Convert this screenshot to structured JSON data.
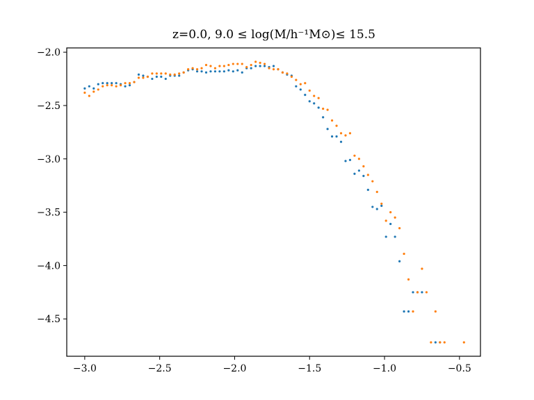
{
  "chart_data": {
    "type": "scatter",
    "title": "z=0.0, 9.0 ≤ log(M/h⁻¹M⊙)≤ 15.5",
    "xlabel": "",
    "ylabel": "",
    "xlim": [
      -3.12,
      -0.36
    ],
    "ylim": [
      -4.85,
      -1.96
    ],
    "xticks": [
      -3.0,
      -2.5,
      -2.0,
      -1.5,
      -1.0,
      -0.5
    ],
    "xtick_labels": [
      "−3.0",
      "−2.5",
      "−2.0",
      "−1.5",
      "−1.0",
      "−0.5"
    ],
    "yticks": [
      -2.0,
      -2.5,
      -3.0,
      -3.5,
      -4.0,
      -4.5
    ],
    "ytick_labels": [
      "−2.0",
      "−2.5",
      "−3.0",
      "−3.5",
      "−4.0",
      "−4.5"
    ],
    "grid": false,
    "series": [
      {
        "color": "#1f77b4",
        "points": [
          [
            -3.0,
            -2.34
          ],
          [
            -2.97,
            -2.32
          ],
          [
            -2.94,
            -2.34
          ],
          [
            -2.91,
            -2.3
          ],
          [
            -2.88,
            -2.29
          ],
          [
            -2.85,
            -2.29
          ],
          [
            -2.82,
            -2.29
          ],
          [
            -2.79,
            -2.29
          ],
          [
            -2.76,
            -2.3
          ],
          [
            -2.73,
            -2.32
          ],
          [
            -2.7,
            -2.31
          ],
          [
            -2.67,
            -2.28
          ],
          [
            -2.64,
            -2.21
          ],
          [
            -2.61,
            -2.22
          ],
          [
            -2.58,
            -2.23
          ],
          [
            -2.55,
            -2.25
          ],
          [
            -2.52,
            -2.23
          ],
          [
            -2.49,
            -2.23
          ],
          [
            -2.46,
            -2.25
          ],
          [
            -2.43,
            -2.22
          ],
          [
            -2.4,
            -2.22
          ],
          [
            -2.37,
            -2.22
          ],
          [
            -2.34,
            -2.19
          ],
          [
            -2.31,
            -2.17
          ],
          [
            -2.28,
            -2.16
          ],
          [
            -2.25,
            -2.18
          ],
          [
            -2.22,
            -2.18
          ],
          [
            -2.19,
            -2.19
          ],
          [
            -2.16,
            -2.18
          ],
          [
            -2.13,
            -2.18
          ],
          [
            -2.1,
            -2.18
          ],
          [
            -2.07,
            -2.18
          ],
          [
            -2.04,
            -2.17
          ],
          [
            -2.01,
            -2.18
          ],
          [
            -1.98,
            -2.17
          ],
          [
            -1.95,
            -2.19
          ],
          [
            -1.92,
            -2.15
          ],
          [
            -1.89,
            -2.15
          ],
          [
            -1.86,
            -2.13
          ],
          [
            -1.83,
            -2.13
          ],
          [
            -1.8,
            -2.13
          ],
          [
            -1.77,
            -2.14
          ],
          [
            -1.74,
            -2.13
          ],
          [
            -1.71,
            -2.16
          ],
          [
            -1.68,
            -2.19
          ],
          [
            -1.65,
            -2.21
          ],
          [
            -1.62,
            -2.22
          ],
          [
            -1.59,
            -2.32
          ],
          [
            -1.56,
            -2.35
          ],
          [
            -1.53,
            -2.4
          ],
          [
            -1.5,
            -2.46
          ],
          [
            -1.47,
            -2.48
          ],
          [
            -1.44,
            -2.52
          ],
          [
            -1.41,
            -2.61
          ],
          [
            -1.38,
            -2.72
          ],
          [
            -1.35,
            -2.79
          ],
          [
            -1.32,
            -2.79
          ],
          [
            -1.29,
            -2.84
          ],
          [
            -1.26,
            -3.02
          ],
          [
            -1.23,
            -3.01
          ],
          [
            -1.2,
            -3.14
          ],
          [
            -1.17,
            -3.11
          ],
          [
            -1.14,
            -3.16
          ],
          [
            -1.11,
            -3.29
          ],
          [
            -1.08,
            -3.45
          ],
          [
            -1.05,
            -3.47
          ],
          [
            -1.02,
            -3.44
          ],
          [
            -0.99,
            -3.73
          ],
          [
            -0.96,
            -3.61
          ],
          [
            -0.93,
            -3.73
          ],
          [
            -0.9,
            -3.96
          ],
          [
            -0.87,
            -4.43
          ],
          [
            -0.84,
            -4.43
          ],
          [
            -0.81,
            -4.25
          ],
          [
            -0.78,
            -4.25
          ],
          [
            -0.75,
            -4.25
          ],
          [
            -0.66,
            -4.72
          ],
          [
            -0.63,
            -4.72
          ]
        ]
      },
      {
        "color": "#ff7f0e",
        "points": [
          [
            -3.0,
            -2.38
          ],
          [
            -2.97,
            -2.41
          ],
          [
            -2.94,
            -2.37
          ],
          [
            -2.91,
            -2.35
          ],
          [
            -2.88,
            -2.32
          ],
          [
            -2.85,
            -2.31
          ],
          [
            -2.82,
            -2.31
          ],
          [
            -2.79,
            -2.32
          ],
          [
            -2.76,
            -2.31
          ],
          [
            -2.73,
            -2.29
          ],
          [
            -2.7,
            -2.29
          ],
          [
            -2.67,
            -2.28
          ],
          [
            -2.64,
            -2.24
          ],
          [
            -2.61,
            -2.24
          ],
          [
            -2.58,
            -2.23
          ],
          [
            -2.55,
            -2.2
          ],
          [
            -2.52,
            -2.2
          ],
          [
            -2.49,
            -2.2
          ],
          [
            -2.46,
            -2.2
          ],
          [
            -2.43,
            -2.21
          ],
          [
            -2.4,
            -2.21
          ],
          [
            -2.37,
            -2.2
          ],
          [
            -2.34,
            -2.19
          ],
          [
            -2.31,
            -2.16
          ],
          [
            -2.28,
            -2.15
          ],
          [
            -2.25,
            -2.16
          ],
          [
            -2.22,
            -2.15
          ],
          [
            -2.19,
            -2.12
          ],
          [
            -2.16,
            -2.13
          ],
          [
            -2.13,
            -2.15
          ],
          [
            -2.1,
            -2.13
          ],
          [
            -2.07,
            -2.13
          ],
          [
            -2.04,
            -2.12
          ],
          [
            -2.01,
            -2.11
          ],
          [
            -1.98,
            -2.11
          ],
          [
            -1.95,
            -2.11
          ],
          [
            -1.92,
            -2.14
          ],
          [
            -1.89,
            -2.12
          ],
          [
            -1.86,
            -2.09
          ],
          [
            -1.83,
            -2.1
          ],
          [
            -1.8,
            -2.11
          ],
          [
            -1.77,
            -2.15
          ],
          [
            -1.74,
            -2.16
          ],
          [
            -1.71,
            -2.16
          ],
          [
            -1.68,
            -2.19
          ],
          [
            -1.65,
            -2.2
          ],
          [
            -1.62,
            -2.23
          ],
          [
            -1.59,
            -2.26
          ],
          [
            -1.56,
            -2.3
          ],
          [
            -1.53,
            -2.29
          ],
          [
            -1.5,
            -2.36
          ],
          [
            -1.47,
            -2.41
          ],
          [
            -1.44,
            -2.43
          ],
          [
            -1.41,
            -2.53
          ],
          [
            -1.38,
            -2.54
          ],
          [
            -1.35,
            -2.64
          ],
          [
            -1.32,
            -2.69
          ],
          [
            -1.29,
            -2.76
          ],
          [
            -1.26,
            -2.78
          ],
          [
            -1.23,
            -2.76
          ],
          [
            -1.2,
            -2.97
          ],
          [
            -1.17,
            -3.0
          ],
          [
            -1.14,
            -3.07
          ],
          [
            -1.11,
            -3.15
          ],
          [
            -1.08,
            -3.21
          ],
          [
            -1.05,
            -3.31
          ],
          [
            -1.02,
            -3.42
          ],
          [
            -0.99,
            -3.58
          ],
          [
            -0.96,
            -3.5
          ],
          [
            -0.93,
            -3.55
          ],
          [
            -0.9,
            -3.65
          ],
          [
            -0.87,
            -3.89
          ],
          [
            -0.84,
            -4.13
          ],
          [
            -0.81,
            -4.43
          ],
          [
            -0.78,
            -4.25
          ],
          [
            -0.75,
            -4.03
          ],
          [
            -0.72,
            -4.25
          ],
          [
            -0.69,
            -4.72
          ],
          [
            -0.66,
            -4.43
          ],
          [
            -0.63,
            -4.72
          ],
          [
            -0.6,
            -4.72
          ],
          [
            -0.47,
            -4.72
          ]
        ]
      }
    ]
  }
}
